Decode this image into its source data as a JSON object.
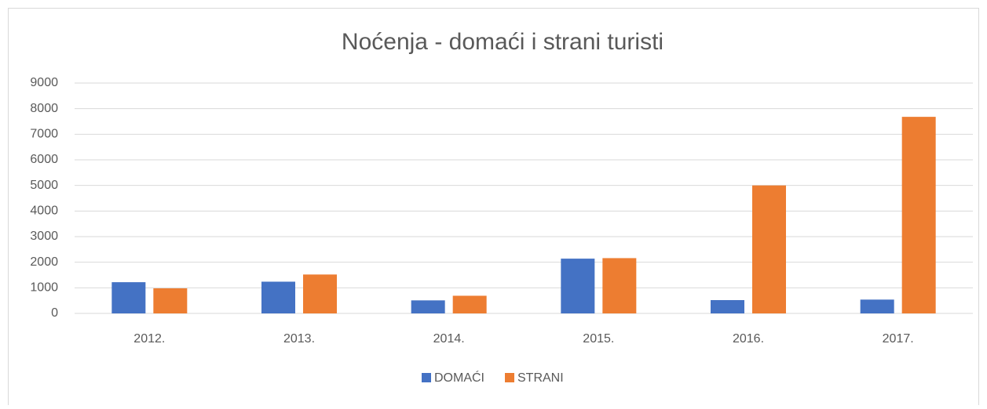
{
  "chart_data": {
    "type": "bar",
    "title": "Noćenja - domaći i strani turisti",
    "categories": [
      "2012.",
      "2013.",
      "2014.",
      "2015.",
      "2016.",
      "2017."
    ],
    "series": [
      {
        "name": "DOMAĆI",
        "color": "#4472c4",
        "values": [
          1220,
          1240,
          510,
          2140,
          520,
          540
        ]
      },
      {
        "name": "STRANI",
        "color": "#ed7d31",
        "values": [
          980,
          1520,
          690,
          2160,
          5000,
          7680
        ]
      }
    ],
    "ylim": [
      0,
      9000
    ],
    "yticks": [
      0,
      1000,
      2000,
      3000,
      4000,
      5000,
      6000,
      7000,
      8000,
      9000
    ],
    "grid": true,
    "legend": "bottom"
  }
}
